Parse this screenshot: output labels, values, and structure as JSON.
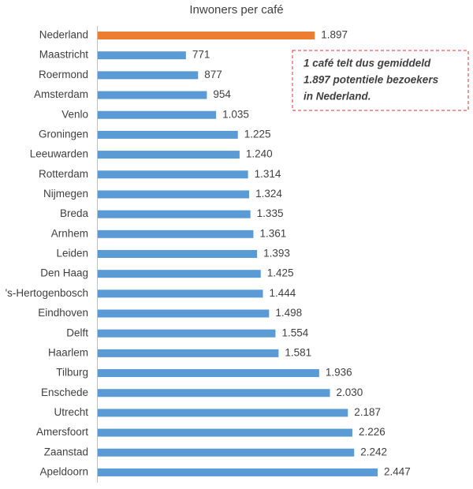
{
  "chart_data": {
    "type": "bar",
    "orientation": "horizontal",
    "title": "Inwoners per café",
    "categories": [
      "Nederland",
      "Maastricht",
      "Roermond",
      "Amsterdam",
      "Venlo",
      "Groningen",
      "Leeuwarden",
      "Rotterdam",
      "Nijmegen",
      "Breda",
      "Arnhem",
      "Leiden",
      "Den Haag",
      "'s-Hertogenbosch",
      "Eindhoven",
      "Delft",
      "Haarlem",
      "Tilburg",
      "Enschede",
      "Utrecht",
      "Amersfoort",
      "Zaanstad",
      "Apeldoorn"
    ],
    "values": [
      1897,
      771,
      877,
      954,
      1035,
      1225,
      1240,
      1314,
      1324,
      1335,
      1361,
      1393,
      1425,
      1444,
      1498,
      1554,
      1581,
      1936,
      2030,
      2187,
      2226,
      2242,
      2447
    ],
    "value_labels": [
      "1.897",
      "771",
      "877",
      "954",
      "1.035",
      "1.225",
      "1.240",
      "1.314",
      "1.324",
      "1.335",
      "1.361",
      "1.393",
      "1.425",
      "1.444",
      "1.498",
      "1.554",
      "1.581",
      "1.936",
      "2.030",
      "2.187",
      "2.226",
      "2.242",
      "2.447"
    ],
    "colors": [
      "#ed7d31",
      "#5b9bd5",
      "#5b9bd5",
      "#5b9bd5",
      "#5b9bd5",
      "#5b9bd5",
      "#5b9bd5",
      "#5b9bd5",
      "#5b9bd5",
      "#5b9bd5",
      "#5b9bd5",
      "#5b9bd5",
      "#5b9bd5",
      "#5b9bd5",
      "#5b9bd5",
      "#5b9bd5",
      "#5b9bd5",
      "#5b9bd5",
      "#5b9bd5",
      "#5b9bd5",
      "#5b9bd5",
      "#5b9bd5",
      "#5b9bd5"
    ],
    "annotation": [
      "1 café telt dus gemiddeld",
      "1.897 potentiele bezoekers",
      "in Nederland."
    ]
  }
}
